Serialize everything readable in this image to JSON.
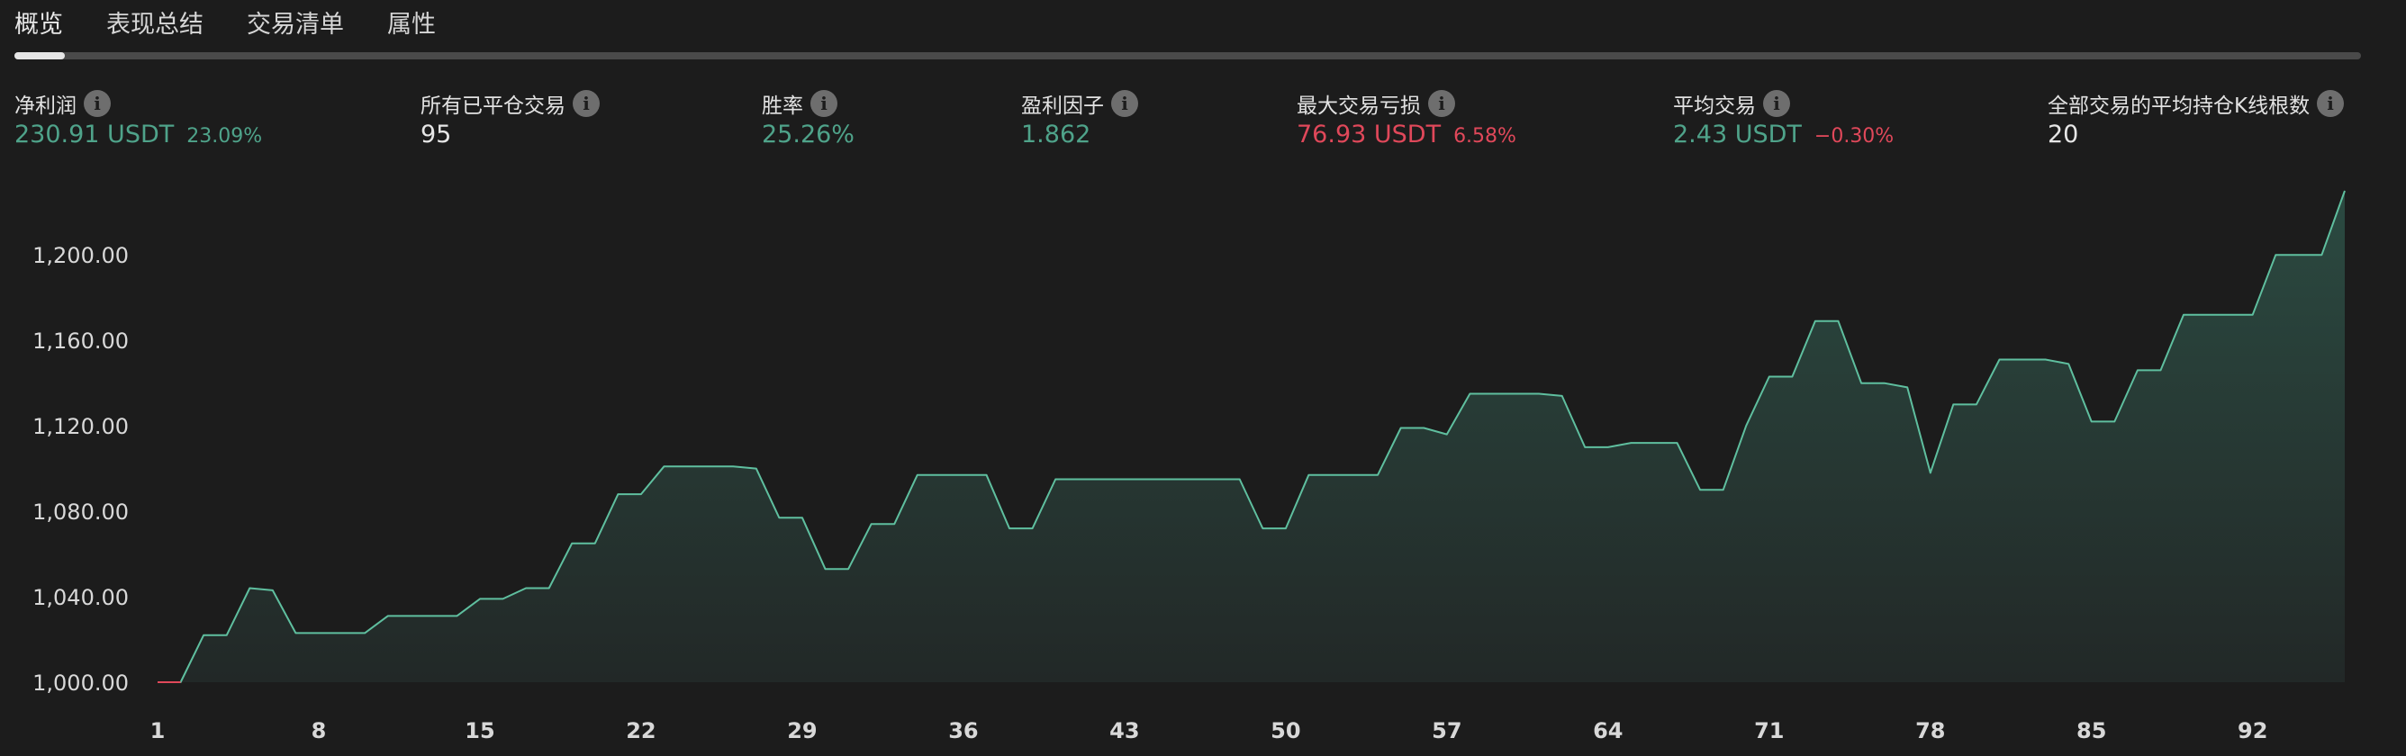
{
  "tabs": [
    {
      "label": "概览",
      "active": true
    },
    {
      "label": "表现总结",
      "active": false
    },
    {
      "label": "交易清单",
      "active": false
    },
    {
      "label": "属性",
      "active": false
    }
  ],
  "metrics": {
    "net_profit": {
      "label": "净利润",
      "value": "230.91 USDT",
      "sub": "23.09%"
    },
    "closed_trades": {
      "label": "所有已平仓交易",
      "value": "95"
    },
    "win_rate": {
      "label": "胜率",
      "value": "25.26%"
    },
    "profit_factor": {
      "label": "盈利因子",
      "value": "1.862"
    },
    "max_drawdown": {
      "label": "最大交易亏损",
      "value": "76.93 USDT",
      "sub": "6.58%"
    },
    "avg_trade": {
      "label": "平均交易",
      "value": "2.43 USDT",
      "sub": "−0.30%"
    },
    "avg_bars": {
      "label": "全部交易的平均持仓K线根数",
      "value": "20"
    }
  },
  "colors": {
    "positive": "#4fa38a",
    "negative": "#e0485a",
    "line": "#5fbf9f",
    "area_top": "#2b4a41",
    "background": "#1c1c1c"
  },
  "chart_data": {
    "type": "area",
    "x": [
      1,
      2,
      3,
      4,
      5,
      6,
      7,
      8,
      9,
      10,
      11,
      12,
      13,
      14,
      15,
      16,
      17,
      18,
      19,
      20,
      21,
      22,
      23,
      24,
      25,
      26,
      27,
      28,
      29,
      30,
      31,
      32,
      33,
      34,
      35,
      36,
      37,
      38,
      39,
      40,
      41,
      42,
      43,
      44,
      45,
      46,
      47,
      48,
      49,
      50,
      51,
      52,
      53,
      54,
      55,
      56,
      57,
      58,
      59,
      60,
      61,
      62,
      63,
      64,
      65,
      66,
      67,
      68,
      69,
      70,
      71,
      72,
      73,
      74,
      75,
      76,
      77,
      78,
      79,
      80,
      81,
      82,
      83,
      84,
      85,
      86,
      87,
      88,
      89,
      90,
      91,
      92,
      93,
      94,
      95,
      96
    ],
    "values": [
      1000,
      1000,
      1022,
      1022,
      1044,
      1043,
      1023,
      1023,
      1023,
      1023,
      1031,
      1031,
      1031,
      1031,
      1039,
      1039,
      1044,
      1044,
      1065,
      1065,
      1088,
      1088,
      1101,
      1101,
      1101,
      1101,
      1100,
      1077,
      1077,
      1053,
      1053,
      1074,
      1074,
      1097,
      1097,
      1097,
      1097,
      1072,
      1072,
      1095,
      1095,
      1095,
      1095,
      1095,
      1095,
      1095,
      1095,
      1095,
      1072,
      1072,
      1097,
      1097,
      1097,
      1097,
      1119,
      1119,
      1116,
      1135,
      1135,
      1135,
      1135,
      1134,
      1110,
      1110,
      1112,
      1112,
      1112,
      1090,
      1090,
      1120,
      1143,
      1143,
      1169,
      1169,
      1140,
      1140,
      1138,
      1098,
      1130,
      1130,
      1151,
      1151,
      1151,
      1149,
      1122,
      1122,
      1146,
      1146,
      1172,
      1172,
      1172,
      1172,
      1200,
      1200,
      1200,
      1230
    ],
    "xticks": [
      1,
      8,
      15,
      22,
      29,
      36,
      43,
      50,
      57,
      64,
      71,
      78,
      85,
      92
    ],
    "xtick_labels": [
      "1",
      "8",
      "15",
      "22",
      "29",
      "36",
      "43",
      "50",
      "57",
      "64",
      "71",
      "78",
      "85",
      "92"
    ],
    "yticks": [
      1000,
      1040,
      1080,
      1120,
      1160,
      1200
    ],
    "ytick_labels": [
      "1,000.00",
      "1,040.00",
      "1,080.00",
      "1,120.00",
      "1,160.00",
      "1,200.00"
    ],
    "ylim": [
      1000,
      1230
    ],
    "xlim": [
      1,
      96
    ],
    "grid": false,
    "title": "",
    "xlabel": "",
    "ylabel": ""
  }
}
